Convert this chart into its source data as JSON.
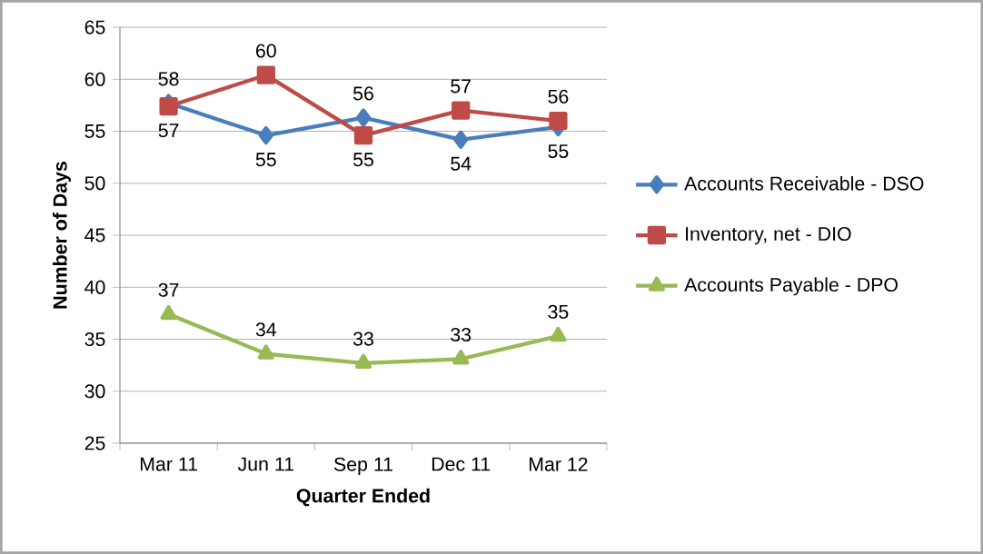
{
  "chart_data": {
    "type": "line",
    "xlabel": "Quarter Ended",
    "ylabel": "Number of Days",
    "categories": [
      "Mar 11",
      "Jun 11",
      "Sep 11",
      "Dec 11",
      "Mar 12"
    ],
    "ylim": [
      25,
      65
    ],
    "yticks": [
      25,
      30,
      35,
      40,
      45,
      50,
      55,
      60,
      65
    ],
    "grid": "y",
    "legend": "right",
    "series": [
      {
        "name": "Accounts Receivable - DSO",
        "color": "#4a7ebb",
        "marker": "diamond",
        "values": [
          57.7,
          54.6,
          56.3,
          54.2,
          55.4
        ],
        "value_labels": [
          "58",
          "55",
          "56",
          "54",
          "55"
        ]
      },
      {
        "name": "Inventory, net - DIO",
        "color": "#be4b48",
        "marker": "square",
        "values": [
          57.4,
          60.4,
          54.6,
          57.0,
          56.0
        ],
        "value_labels": [
          "57",
          "60",
          "55",
          "57",
          "56"
        ]
      },
      {
        "name": "Accounts Payable - DPO",
        "color": "#98b954",
        "marker": "triangle",
        "values": [
          37.4,
          33.6,
          32.7,
          33.1,
          35.3
        ],
        "value_labels": [
          "37",
          "34",
          "33",
          "33",
          "35"
        ]
      }
    ]
  }
}
